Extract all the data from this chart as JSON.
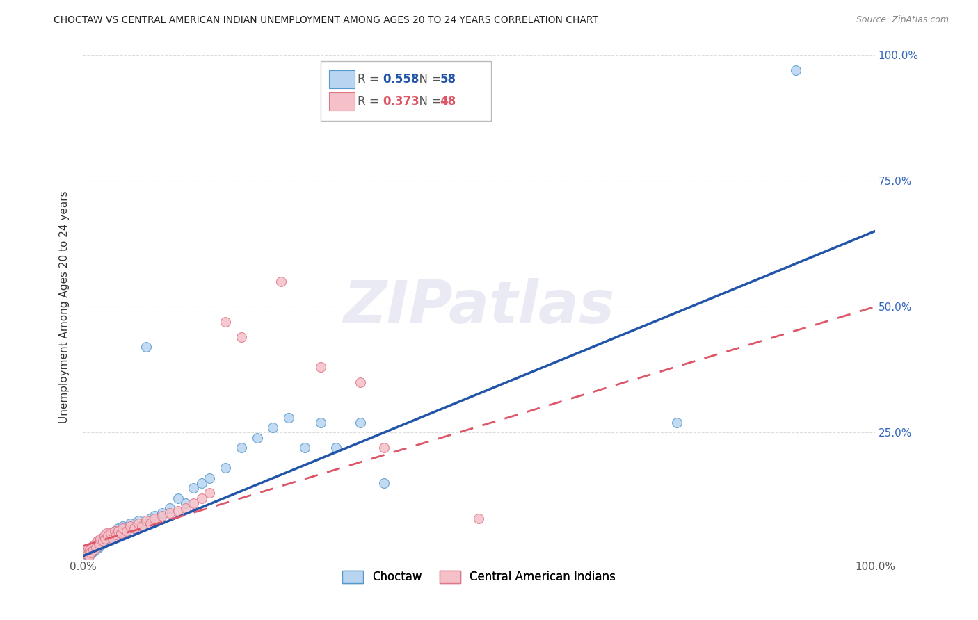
{
  "title": "CHOCTAW VS CENTRAL AMERICAN INDIAN UNEMPLOYMENT AMONG AGES 20 TO 24 YEARS CORRELATION CHART",
  "source": "Source: ZipAtlas.com",
  "ylabel": "Unemployment Among Ages 20 to 24 years",
  "xlim": [
    0.0,
    1.0
  ],
  "ylim": [
    0.0,
    1.0
  ],
  "choctaw_color": "#b8d4f0",
  "choctaw_edge": "#5599cc",
  "ca_color": "#f5c0c8",
  "ca_edge": "#dd7788",
  "choctaw_line_color": "#2255aa",
  "ca_line_color": "#dd5566",
  "choctaw_R": "0.558",
  "choctaw_N": "58",
  "ca_R": "0.373",
  "ca_N": "48",
  "grid_color": "#dddddd",
  "background_color": "#ffffff",
  "title_color": "#222222",
  "watermark_color": "#eaeaf5",
  "marker_size": 100,
  "choctaw_label": "Choctaw",
  "ca_label": "Central American Indians",
  "tick_color": "#3366bb",
  "choctaw_line_intercept": 0.005,
  "choctaw_line_slope": 0.645,
  "ca_line_intercept": 0.025,
  "ca_line_slope": 0.475,
  "choctaw_points_x": [
    0.003,
    0.005,
    0.006,
    0.007,
    0.008,
    0.009,
    0.01,
    0.011,
    0.012,
    0.013,
    0.014,
    0.015,
    0.016,
    0.017,
    0.018,
    0.019,
    0.02,
    0.021,
    0.022,
    0.025,
    0.027,
    0.028,
    0.03,
    0.032,
    0.035,
    0.038,
    0.04,
    0.042,
    0.045,
    0.048,
    0.05,
    0.055,
    0.06,
    0.065,
    0.07,
    0.075,
    0.08,
    0.085,
    0.09,
    0.1,
    0.11,
    0.12,
    0.13,
    0.14,
    0.15,
    0.16,
    0.18,
    0.2,
    0.22,
    0.24,
    0.26,
    0.28,
    0.3,
    0.32,
    0.35,
    0.38,
    0.75,
    0.9
  ],
  "choctaw_points_y": [
    0.005,
    0.008,
    0.01,
    0.012,
    0.015,
    0.008,
    0.018,
    0.012,
    0.02,
    0.015,
    0.022,
    0.025,
    0.018,
    0.028,
    0.03,
    0.022,
    0.035,
    0.025,
    0.038,
    0.03,
    0.042,
    0.035,
    0.045,
    0.038,
    0.05,
    0.04,
    0.055,
    0.045,
    0.06,
    0.05,
    0.065,
    0.055,
    0.07,
    0.06,
    0.075,
    0.065,
    0.42,
    0.08,
    0.085,
    0.09,
    0.1,
    0.12,
    0.11,
    0.14,
    0.15,
    0.16,
    0.18,
    0.22,
    0.24,
    0.26,
    0.28,
    0.22,
    0.27,
    0.22,
    0.27,
    0.15,
    0.27,
    0.97
  ],
  "ca_points_x": [
    0.003,
    0.005,
    0.006,
    0.007,
    0.008,
    0.009,
    0.01,
    0.012,
    0.013,
    0.015,
    0.017,
    0.018,
    0.02,
    0.022,
    0.025,
    0.027,
    0.028,
    0.03,
    0.032,
    0.035,
    0.038,
    0.04,
    0.042,
    0.045,
    0.048,
    0.05,
    0.055,
    0.06,
    0.065,
    0.07,
    0.075,
    0.08,
    0.085,
    0.09,
    0.1,
    0.11,
    0.12,
    0.13,
    0.14,
    0.15,
    0.16,
    0.18,
    0.2,
    0.25,
    0.3,
    0.35,
    0.38,
    0.5
  ],
  "ca_points_y": [
    0.01,
    0.015,
    0.008,
    0.02,
    0.005,
    0.018,
    0.012,
    0.025,
    0.018,
    0.028,
    0.022,
    0.035,
    0.03,
    0.04,
    0.035,
    0.045,
    0.04,
    0.05,
    0.045,
    0.05,
    0.04,
    0.055,
    0.048,
    0.055,
    0.05,
    0.06,
    0.055,
    0.065,
    0.06,
    0.07,
    0.065,
    0.075,
    0.07,
    0.08,
    0.085,
    0.09,
    0.095,
    0.1,
    0.11,
    0.12,
    0.13,
    0.47,
    0.44,
    0.55,
    0.38,
    0.35,
    0.22,
    0.08
  ]
}
